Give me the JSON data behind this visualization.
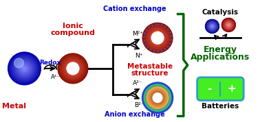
{
  "bg_color": "#ffffff",
  "metal_label": "Metal",
  "metal_label_color": "#cc0000",
  "redox_label": "Redox",
  "redox_color": "#0000cc",
  "redox_anion": "A²⁻",
  "ionic_label1": "Ionic",
  "ionic_label2": "compound",
  "ionic_color": "#cc0000",
  "cation_exchange_label": "Cation exchange",
  "cation_exchange_color": "#0000cc",
  "cation_m": "M²⁺",
  "cation_n": "N⁺",
  "metastable_label1": "Metastable",
  "metastable_label2": "structure",
  "metastable_color": "#cc0000",
  "anion_exchange_label": "Anion exchange",
  "anion_exchange_color": "#0000cc",
  "anion_a": "A²⁻",
  "anion_b": "B²⁻",
  "catalysis_label": "Catalysis",
  "catalysis_color": "#000000",
  "energy_label1": "Energy",
  "energy_label2": "Applications",
  "energy_color": "#006600",
  "batteries_label": "Batteries",
  "batteries_color": "#000000",
  "bracket_color": "#006600",
  "figw": 3.78,
  "figh": 1.78,
  "dpi": 100
}
